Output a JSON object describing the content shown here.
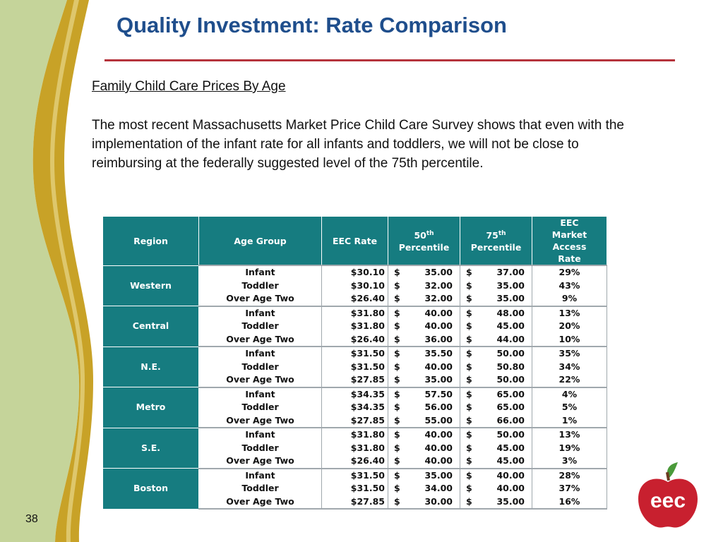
{
  "slide": {
    "title": "Quality Investment:  Rate Comparison",
    "subtitle": "Family Child Care Prices By Age",
    "body": "The most recent Massachusetts Market Price Child Care Survey shows that even with the implementation of the infant rate for all infants and toddlers, we will not be close to reimbursing at the federally suggested level of the 75th percentile.",
    "page_number": "38",
    "logo_text": "eec"
  },
  "colors": {
    "title": "#1f4e8c",
    "rule": "#b5333b",
    "table_header": "#167c80",
    "logo_red": "#c8202f",
    "logo_leaf": "#4a9a3a",
    "side_green": "#c5d49a",
    "side_gold": "#c8a227"
  },
  "table": {
    "headers": {
      "region": "Region",
      "age": "Age Group",
      "eec_rate": "EEC Rate",
      "p50_num": "50",
      "p50_sup": "th",
      "p50_word": "Percentile",
      "p75_num": "75",
      "p75_sup": "th",
      "p75_word": "Percentile",
      "access_lines": [
        "EEC",
        "Market",
        "Access",
        "Rate"
      ]
    },
    "regions": [
      {
        "name": "Western",
        "rows": [
          {
            "age": "Infant",
            "rate": "$30.10",
            "p50": "35.00",
            "p75": "37.00",
            "access": "29%"
          },
          {
            "age": "Toddler",
            "rate": "$30.10",
            "p50": "32.00",
            "p75": "35.00",
            "access": "43%"
          },
          {
            "age": "Over Age Two",
            "rate": "$26.40",
            "p50": "32.00",
            "p75": "35.00",
            "access": "9%"
          }
        ]
      },
      {
        "name": "Central",
        "rows": [
          {
            "age": "Infant",
            "rate": "$31.80",
            "p50": "40.00",
            "p75": "48.00",
            "access": "13%"
          },
          {
            "age": "Toddler",
            "rate": "$31.80",
            "p50": "40.00",
            "p75": "45.00",
            "access": "20%"
          },
          {
            "age": "Over Age Two",
            "rate": "$26.40",
            "p50": "36.00",
            "p75": "44.00",
            "access": "10%"
          }
        ]
      },
      {
        "name": "N.E.",
        "rows": [
          {
            "age": "Infant",
            "rate": "$31.50",
            "p50": "35.50",
            "p75": "50.00",
            "access": "35%"
          },
          {
            "age": "Toddler",
            "rate": "$31.50",
            "p50": "40.00",
            "p75": "50.80",
            "access": "34%"
          },
          {
            "age": "Over Age Two",
            "rate": "$27.85",
            "p50": "35.00",
            "p75": "50.00",
            "access": "22%"
          }
        ]
      },
      {
        "name": "Metro",
        "rows": [
          {
            "age": "Infant",
            "rate": "$34.35",
            "p50": "57.50",
            "p75": "65.00",
            "access": "4%"
          },
          {
            "age": "Toddler",
            "rate": "$34.35",
            "p50": "56.00",
            "p75": "65.00",
            "access": "5%"
          },
          {
            "age": "Over Age Two",
            "rate": "$27.85",
            "p50": "55.00",
            "p75": "66.00",
            "access": "1%"
          }
        ]
      },
      {
        "name": "S.E.",
        "rows": [
          {
            "age": "Infant",
            "rate": "$31.80",
            "p50": "40.00",
            "p75": "50.00",
            "access": "13%"
          },
          {
            "age": "Toddler",
            "rate": "$31.80",
            "p50": "40.00",
            "p75": "45.00",
            "access": "19%"
          },
          {
            "age": "Over Age Two",
            "rate": "$26.40",
            "p50": "40.00",
            "p75": "45.00",
            "access": "3%"
          }
        ]
      },
      {
        "name": "Boston",
        "rows": [
          {
            "age": "Infant",
            "rate": "$31.50",
            "p50": "35.00",
            "p75": "40.00",
            "access": "28%"
          },
          {
            "age": "Toddler",
            "rate": "$31.50",
            "p50": "34.00",
            "p75": "40.00",
            "access": "37%"
          },
          {
            "age": "Over Age Two",
            "rate": "$27.85",
            "p50": "30.00",
            "p75": "35.00",
            "access": "16%"
          }
        ]
      }
    ]
  }
}
